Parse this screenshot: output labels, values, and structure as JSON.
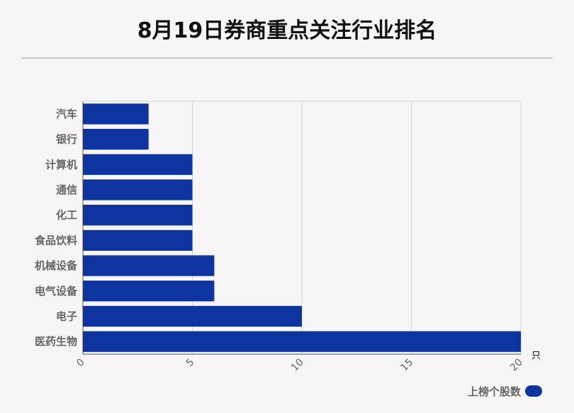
{
  "title": "8月19日券商重点关注行业排名",
  "chart_data": {
    "type": "bar",
    "orientation": "horizontal",
    "categories": [
      "汽车",
      "银行",
      "计算机",
      "通信",
      "化工",
      "食品饮料",
      "机械设备",
      "电气设备",
      "电子",
      "医药生物"
    ],
    "series": [
      {
        "name": "上榜个股数",
        "values": [
          3,
          3,
          5,
          5,
          5,
          5,
          6,
          6,
          10,
          20
        ]
      }
    ],
    "x_ticks": [
      "0",
      "5",
      "10",
      "15",
      "20"
    ],
    "xlim": [
      0,
      20
    ],
    "x_unit": "只",
    "grid": true,
    "legend_position": "bottom-right",
    "bar_color": "#0e34a0"
  }
}
